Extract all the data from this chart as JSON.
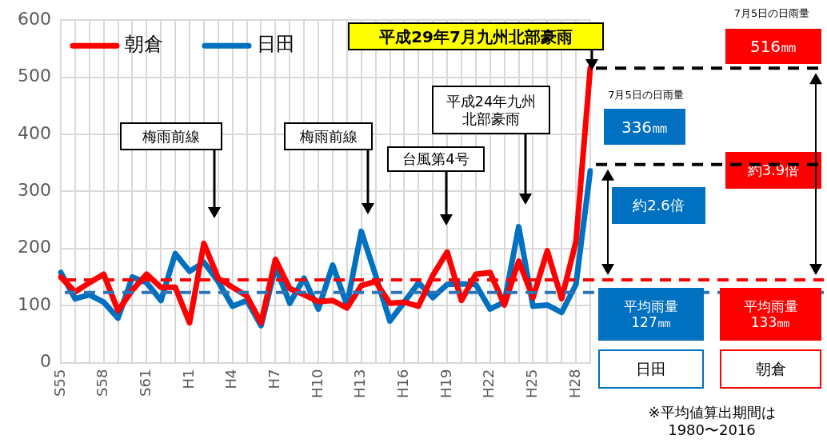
{
  "chart_data": {
    "type": "line",
    "categories": [
      "S55",
      null,
      null,
      "S58",
      null,
      null,
      "S61",
      null,
      null,
      "H1",
      null,
      null,
      "H4",
      null,
      null,
      "H7",
      null,
      null,
      "H10",
      null,
      null,
      "H13",
      null,
      null,
      "H16",
      null,
      null,
      "H19",
      null,
      null,
      "H22",
      null,
      null,
      "H25",
      null,
      null,
      "H28",
      null
    ],
    "series": [
      {
        "name": "朝倉",
        "color": "#ff0000",
        "values": [
          150,
          124,
          140,
          155,
          91,
          127,
          155,
          132,
          132,
          70,
          209,
          148,
          132,
          117,
          70,
          181,
          130,
          119,
          107,
          109,
          96,
          135,
          142,
          104,
          106,
          99,
          153,
          194,
          109,
          155,
          158,
          101,
          178,
          114,
          196,
          112,
          212,
          516
        ]
      },
      {
        "name": "日田",
        "color": "#0070c0",
        "values": [
          158,
          112,
          119,
          106,
          78,
          150,
          140,
          109,
          191,
          160,
          176,
          142,
          99,
          109,
          65,
          168,
          104,
          148,
          94,
          171,
          101,
          230,
          153,
          73,
          106,
          140,
          114,
          137,
          138,
          137,
          94,
          106,
          238,
          99,
          101,
          88,
          137,
          336
        ]
      }
    ],
    "ylim": [
      0,
      600
    ],
    "yticks": [
      0,
      100,
      200,
      300,
      400,
      500,
      600
    ],
    "grid": true,
    "legend": "top left",
    "marker": "none",
    "line_style": "solid",
    "ref_lines": [
      {
        "axis": "y",
        "value": 145,
        "color": "#ff0000",
        "line_style": "dashed"
      },
      {
        "axis": "y",
        "value": 123,
        "color": "#2e75b6",
        "line_style": "dashed"
      }
    ],
    "annotations": [
      "平成29年7月九州北部豪雨",
      "梅雨前線",
      "梅雨前線",
      "台風第4号",
      "平成24年九州北部豪雨",
      "7月5日の日雨量",
      "516㎜",
      "7月5日の日雨量",
      "336㎜",
      "約3.9倍",
      "約2.6倍",
      "平均雨量",
      "127㎜",
      "平均雨量",
      "133㎜",
      "日田",
      "朝倉",
      "※平均値算出期間は",
      "1980〜2016"
    ]
  }
}
